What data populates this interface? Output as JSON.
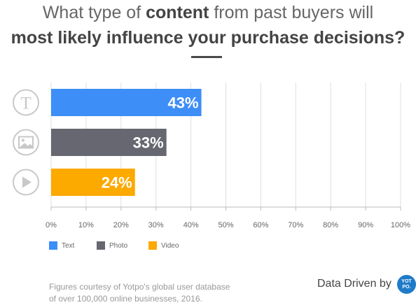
{
  "title": {
    "line1_pre": "What type of ",
    "line1_bold": "content",
    "line1_post": " from past buyers will",
    "line2": "most likely influence your purchase decisions?"
  },
  "colors": {
    "text": "#3d8ef7",
    "photo": "#666770",
    "video": "#fca900",
    "grid": "#dfdfdf",
    "icon": "#c8c8c8",
    "badge": "#1f7bc9"
  },
  "chart_data": {
    "type": "bar",
    "orientation": "horizontal",
    "categories": [
      "Text",
      "Photo",
      "Video"
    ],
    "values": [
      43,
      33,
      24
    ],
    "value_labels": [
      "43%",
      "33%",
      "24%"
    ],
    "xlim": [
      0,
      100
    ],
    "xticks": [
      "0%",
      "10%",
      "20%",
      "30%",
      "40%",
      "50%",
      "60%",
      "70%",
      "80%",
      "90%",
      "100%"
    ],
    "grid": true,
    "legend": [
      "Text",
      "Photo",
      "Video"
    ],
    "legend_position": "bottom-left",
    "category_icons": [
      "text-icon",
      "image-icon",
      "play-icon"
    ]
  },
  "footnote": {
    "line1": "Figures courtesy of Yotpo's global user database",
    "line2": "of over 100,000 online businesses, 2016."
  },
  "credit": {
    "text": "Data Driven by",
    "badge_line1": "YOT",
    "badge_line2": "PO."
  }
}
